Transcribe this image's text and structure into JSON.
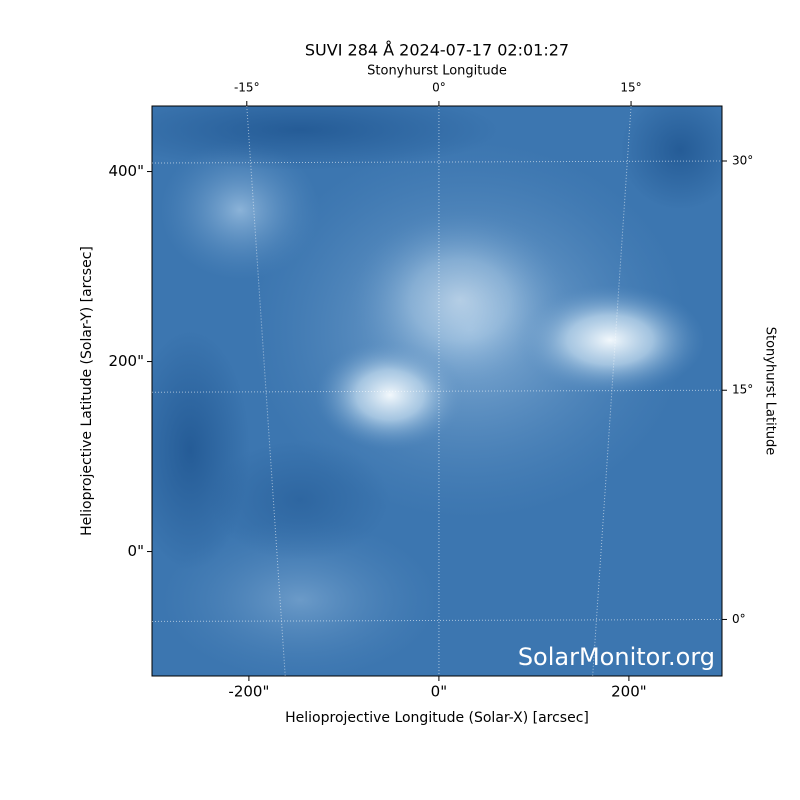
{
  "chart_data": {
    "type": "image",
    "title": "SUVI 284 Å 2024-07-17 02:01:27",
    "x_label": "Helioprojective Longitude (Solar-X) [arcsec]",
    "y_label": "Helioprojective Latitude (Solar-Y) [arcsec]",
    "x2_label": "Stonyhurst Longitude",
    "y2_label": "Stonyhurst Latitude",
    "watermark": "SolarMonitor.org",
    "xlim": [
      -302,
      298
    ],
    "ylim": [
      -131,
      469
    ],
    "xticks": [
      {
        "value": -200,
        "label": "-200\""
      },
      {
        "value": 0,
        "label": "0\""
      },
      {
        "value": 200,
        "label": "200\""
      }
    ],
    "yticks": [
      {
        "value": 0,
        "label": "0\""
      },
      {
        "value": 200,
        "label": "200\""
      },
      {
        "value": 400,
        "label": "400\""
      }
    ],
    "x2lim": [
      -22.4,
      22.1
    ],
    "x2ticks": [
      {
        "value": -15,
        "label": "-15°"
      },
      {
        "value": 0,
        "label": "0°"
      },
      {
        "value": 15,
        "label": "15°"
      }
    ],
    "y2lim": [
      -3.7,
      33.6
    ],
    "y2ticks": [
      {
        "value": 0,
        "label": "0°"
      },
      {
        "value": 15,
        "label": "15°"
      },
      {
        "value": 30,
        "label": "30°"
      }
    ],
    "grid": true
  }
}
